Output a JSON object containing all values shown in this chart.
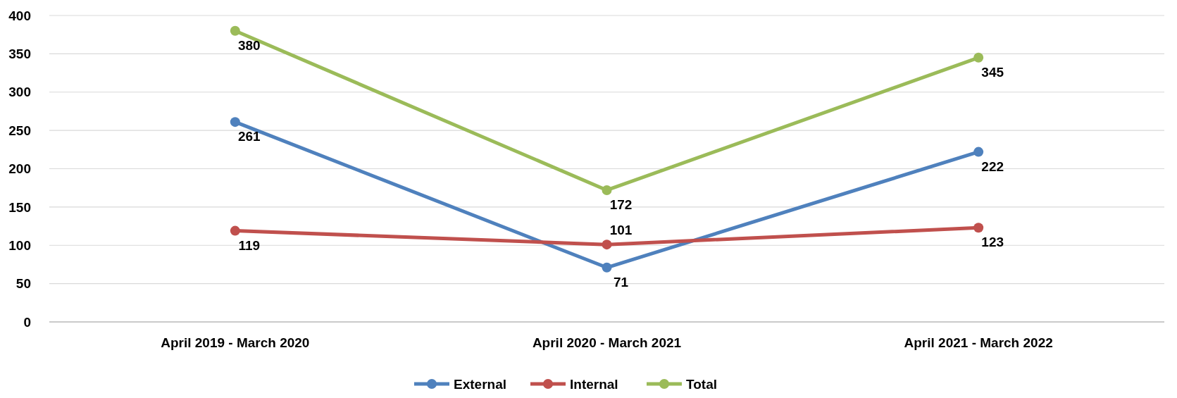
{
  "chart_data": {
    "type": "line",
    "categories": [
      "April 2019 - March 2020",
      "April 2020 - March 2021",
      "April 2021 - March 2022"
    ],
    "series": [
      {
        "name": "External",
        "color": "#4f81bd",
        "values": [
          261,
          71,
          222
        ]
      },
      {
        "name": "Internal",
        "color": "#c0504d",
        "values": [
          119,
          101,
          123
        ]
      },
      {
        "name": "Total",
        "color": "#9bbb59",
        "values": [
          380,
          172,
          345
        ]
      }
    ],
    "ylim": [
      0,
      400
    ],
    "yticks": [
      0,
      50,
      100,
      150,
      200,
      250,
      300,
      350,
      400
    ],
    "grid": "y",
    "legend": "bottom",
    "marker": "circle",
    "line_style": "solid",
    "data_labels": true
  }
}
